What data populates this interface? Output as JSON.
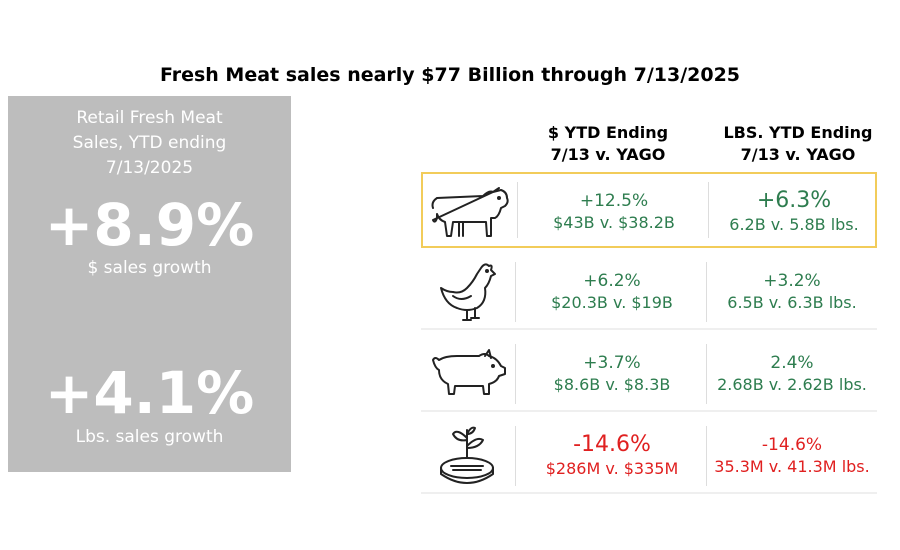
{
  "title": "Fresh Meat sales nearly $77 Billion through 7/13/2025",
  "summary": {
    "caption_line1": "Retail Fresh Meat",
    "caption_line2": "Sales, YTD ending",
    "caption_line3": "7/13/2025",
    "dollar_growth": "+8.9%",
    "dollar_label": "$ sales growth",
    "lbs_growth": "+4.1%",
    "lbs_label": "Lbs. sales growth"
  },
  "columns": {
    "dollar_line1": "$ YTD Ending",
    "dollar_line2": "7/13  v. YAGO",
    "lbs_line1": "LBS. YTD Ending",
    "lbs_line2": "7/13  v. YAGO"
  },
  "rows": [
    {
      "icon": "cow-icon",
      "dollar_pct": "+12.5%",
      "dollar_val": "$43B v. $38.2B",
      "lbs_pct": "+6.3%",
      "lbs_val": "6.2B v. 5.8B lbs.",
      "color": "#2e7d4f"
    },
    {
      "icon": "chicken-icon",
      "dollar_pct": "+6.2%",
      "dollar_val": "$20.3B v. $19B",
      "lbs_pct": "+3.2%",
      "lbs_val": "6.5B v. 6.3B lbs.",
      "color": "#2e7d4f"
    },
    {
      "icon": "pig-icon",
      "dollar_pct": "+3.7%",
      "dollar_val": "$8.6B v. $8.3B",
      "lbs_pct": "2.4%",
      "lbs_val": "2.68B v. 2.62B lbs.",
      "color": "#2e7d4f"
    },
    {
      "icon": "plant-based-meat-icon",
      "dollar_pct": "-14.6%",
      "dollar_val": "$286M v. $335M",
      "lbs_pct": "-14.6%",
      "lbs_val": "35.3M v. 41.3M lbs.",
      "color": "#e02020"
    }
  ],
  "colors": {
    "highlight": "#f2cc5a",
    "positive": "#2e7d4f",
    "negative": "#e02020",
    "panel": "#bdbdbd"
  }
}
